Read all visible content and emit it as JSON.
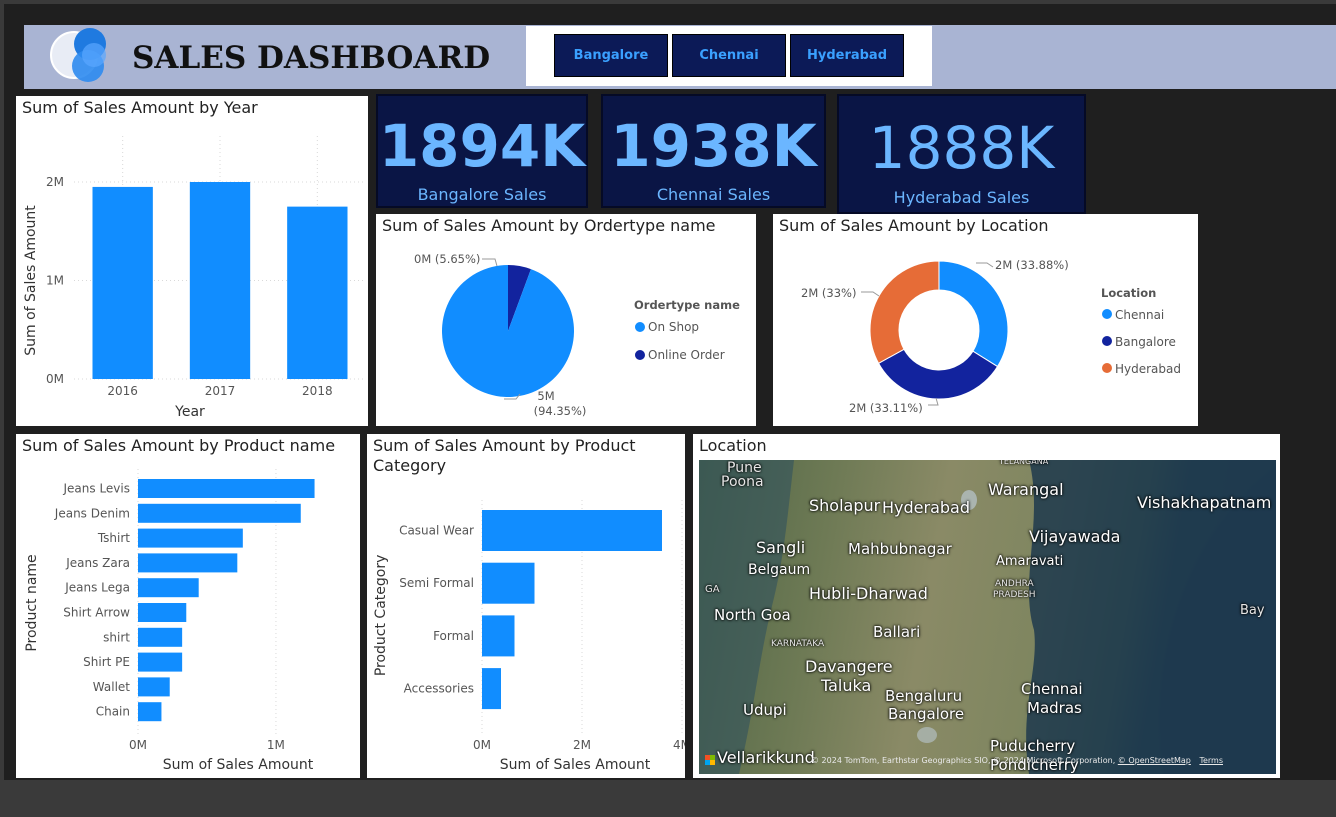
{
  "header": {
    "title": "SALES DASHBOARD"
  },
  "city_buttons": [
    {
      "label": "Bangalore"
    },
    {
      "label": "Chennai"
    },
    {
      "label": "Hyderabad"
    }
  ],
  "kpis": [
    {
      "value": "1894K",
      "caption": "Bangalore Sales"
    },
    {
      "value": "1938K",
      "caption": "Chennai Sales"
    },
    {
      "value": "1888K",
      "caption": "Hyderabad Sales"
    }
  ],
  "colors": {
    "bar": "#118dff",
    "dark": "#12239e",
    "orange": "#e66c37",
    "navy": "#0a1545",
    "header_bg": "#a9b4d3"
  },
  "chart_data": [
    {
      "id": "by_year",
      "type": "bar",
      "title": "Sum of Sales Amount by Year",
      "xlabel": "Year",
      "ylabel": "Sum of Sales Amount",
      "categories": [
        "2016",
        "2017",
        "2018"
      ],
      "values": [
        1950000,
        2000000,
        1750000
      ],
      "ylim": [
        0,
        2000000
      ],
      "yticks": [
        "0M",
        "1M",
        "2M"
      ]
    },
    {
      "id": "by_ordertype",
      "type": "pie",
      "title": "Sum of Sales Amount by Ordertype name",
      "legend_title": "Ordertype name",
      "slices": [
        {
          "name": "On Shop",
          "label": "5M",
          "pct": "(94.35%)",
          "share": 94.35,
          "color": "#118dff"
        },
        {
          "name": "Online Order",
          "label": "0M (5.65%)",
          "share": 5.65,
          "color": "#12239e"
        }
      ]
    },
    {
      "id": "by_location",
      "type": "pie",
      "title": "Sum of Sales Amount by Location",
      "legend_title": "Location",
      "slices": [
        {
          "name": "Chennai",
          "label": "2M (33.88%)",
          "share": 33.88,
          "color": "#118dff"
        },
        {
          "name": "Bangalore",
          "label": "2M (33.11%)",
          "share": 33.11,
          "color": "#12239e"
        },
        {
          "name": "Hyderabad",
          "label": "2M (33%)",
          "share": 33.0,
          "color": "#e66c37"
        }
      ]
    },
    {
      "id": "by_product",
      "type": "bar",
      "title": "Sum of Sales Amount by Product name",
      "xlabel": "Sum of Sales Amount",
      "ylabel": "Product name",
      "categories": [
        "Jeans Levis",
        "Jeans Denim",
        "Tshirt",
        "Jeans Zara",
        "Jeans Lega",
        "Shirt Arrow",
        "shirt",
        "Shirt PE",
        "Wallet",
        "Chain"
      ],
      "values": [
        1280000,
        1180000,
        760000,
        720000,
        440000,
        350000,
        320000,
        320000,
        230000,
        170000
      ],
      "xticks": [
        "0M",
        "1M"
      ],
      "xlim": [
        0,
        1450000
      ]
    },
    {
      "id": "by_category",
      "type": "bar",
      "title": "Sum of Sales Amount by Product Category",
      "xlabel": "Sum of Sales Amount",
      "ylabel": "Product Category",
      "categories": [
        "Casual Wear",
        "Semi Formal",
        "Formal",
        "Accessories"
      ],
      "values": [
        3600000,
        1050000,
        650000,
        380000
      ],
      "xticks": [
        "0M",
        "2M",
        "4M"
      ],
      "xlim": [
        0,
        4000000
      ]
    }
  ],
  "map": {
    "title": "Location",
    "places": [
      "Pune",
      "Poona",
      "TELANGANA",
      "Warangal",
      "Vishakhapatnam",
      "Sholapur",
      "Hyderabad",
      "Sangli",
      "Mahbubnagar",
      "Vijayawada",
      "Belgaum",
      "Amaravati",
      "GA",
      "ANDHRA",
      "PRADESH",
      "Hubli-Dharwad",
      "North Goa",
      "Bay",
      "KARNATAKA",
      "Ballari",
      "Davangere",
      "Taluka",
      "Bengaluru",
      "Chennai",
      "Bangalore",
      "Madras",
      "Udupi",
      "Puducherry",
      "Vellarikkund",
      "Pondicherry"
    ],
    "attribution": "© 2024 TomTom, Earthstar Geographics SIO, © 2024 Microsoft Corporation,",
    "osm": "© OpenStreetMap",
    "terms": "Terms"
  }
}
